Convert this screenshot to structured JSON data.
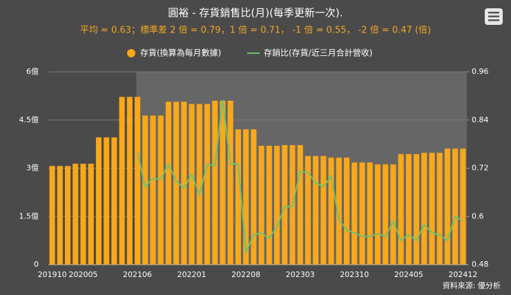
{
  "chart_data": {
    "type": "bar_line",
    "title": "圓裕 - 存貨銷售比(月)(每季更新一次).",
    "subtitle": "平均 = 0.63；標準差 2 倍 = 0.79，1 倍 = 0.71， -1 倍 = 0.55， -2 倍 = 0.47 (倍)",
    "source": "資料來源: 優分析",
    "categories": [
      "201910",
      null,
      null,
      null,
      "202005",
      null,
      null,
      null,
      null,
      null,
      null,
      "202106",
      null,
      null,
      null,
      null,
      null,
      null,
      "202201",
      null,
      null,
      null,
      null,
      null,
      null,
      "202208",
      null,
      null,
      null,
      null,
      null,
      null,
      "202303",
      null,
      null,
      null,
      null,
      null,
      null,
      "202310",
      null,
      null,
      null,
      null,
      null,
      null,
      "202405",
      null,
      null,
      null,
      null,
      null,
      null,
      "202412"
    ],
    "series": [
      {
        "name": "存貨(換算為每月數據)",
        "type": "bar",
        "color": "#f9a71b",
        "values": [
          3.07,
          3.07,
          3.07,
          3.14,
          3.14,
          3.14,
          3.96,
          3.96,
          3.96,
          5.22,
          5.22,
          5.22,
          4.64,
          4.64,
          4.64,
          5.07,
          5.07,
          5.07,
          5.0,
          5.0,
          5.0,
          5.1,
          5.1,
          5.1,
          4.21,
          4.21,
          4.21,
          3.7,
          3.7,
          3.7,
          3.72,
          3.72,
          3.72,
          3.38,
          3.38,
          3.38,
          3.33,
          3.33,
          3.33,
          3.18,
          3.18,
          3.18,
          3.12,
          3.12,
          3.12,
          3.44,
          3.44,
          3.44,
          3.48,
          3.48,
          3.48,
          3.61,
          3.61,
          3.61
        ]
      },
      {
        "name": "存銷比(存貨/近三月合計營收)",
        "type": "line",
        "color": "#6cc472",
        "axis": "y2",
        "values": [
          null,
          null,
          null,
          null,
          null,
          null,
          null,
          null,
          null,
          null,
          null,
          0.76,
          0.674,
          0.695,
          0.692,
          0.73,
          0.688,
          0.671,
          0.705,
          0.654,
          0.73,
          0.726,
          0.89,
          0.731,
          0.731,
          0.511,
          0.554,
          0.559,
          0.545,
          0.575,
          0.623,
          0.626,
          0.712,
          0.709,
          0.683,
          0.674,
          0.7,
          0.592,
          0.566,
          0.559,
          0.55,
          0.55,
          0.557,
          0.55,
          0.588,
          0.54,
          0.554,
          0.54,
          0.58,
          0.559,
          0.554,
          0.54,
          0.6,
          0.588
        ]
      }
    ],
    "ylim": [
      0,
      6
    ],
    "yticks": [
      0,
      {
        "value": 1.5,
        "label": "1.5億"
      },
      {
        "value": 3,
        "label": "3億"
      },
      {
        "value": 4.5,
        "label": "4.5億"
      },
      {
        "value": 6,
        "label": "6億"
      }
    ],
    "y2lim": [
      0.48,
      0.96
    ],
    "y2ticks": [
      0.48,
      0.6,
      0.72,
      0.84,
      0.96
    ],
    "grid": true
  }
}
